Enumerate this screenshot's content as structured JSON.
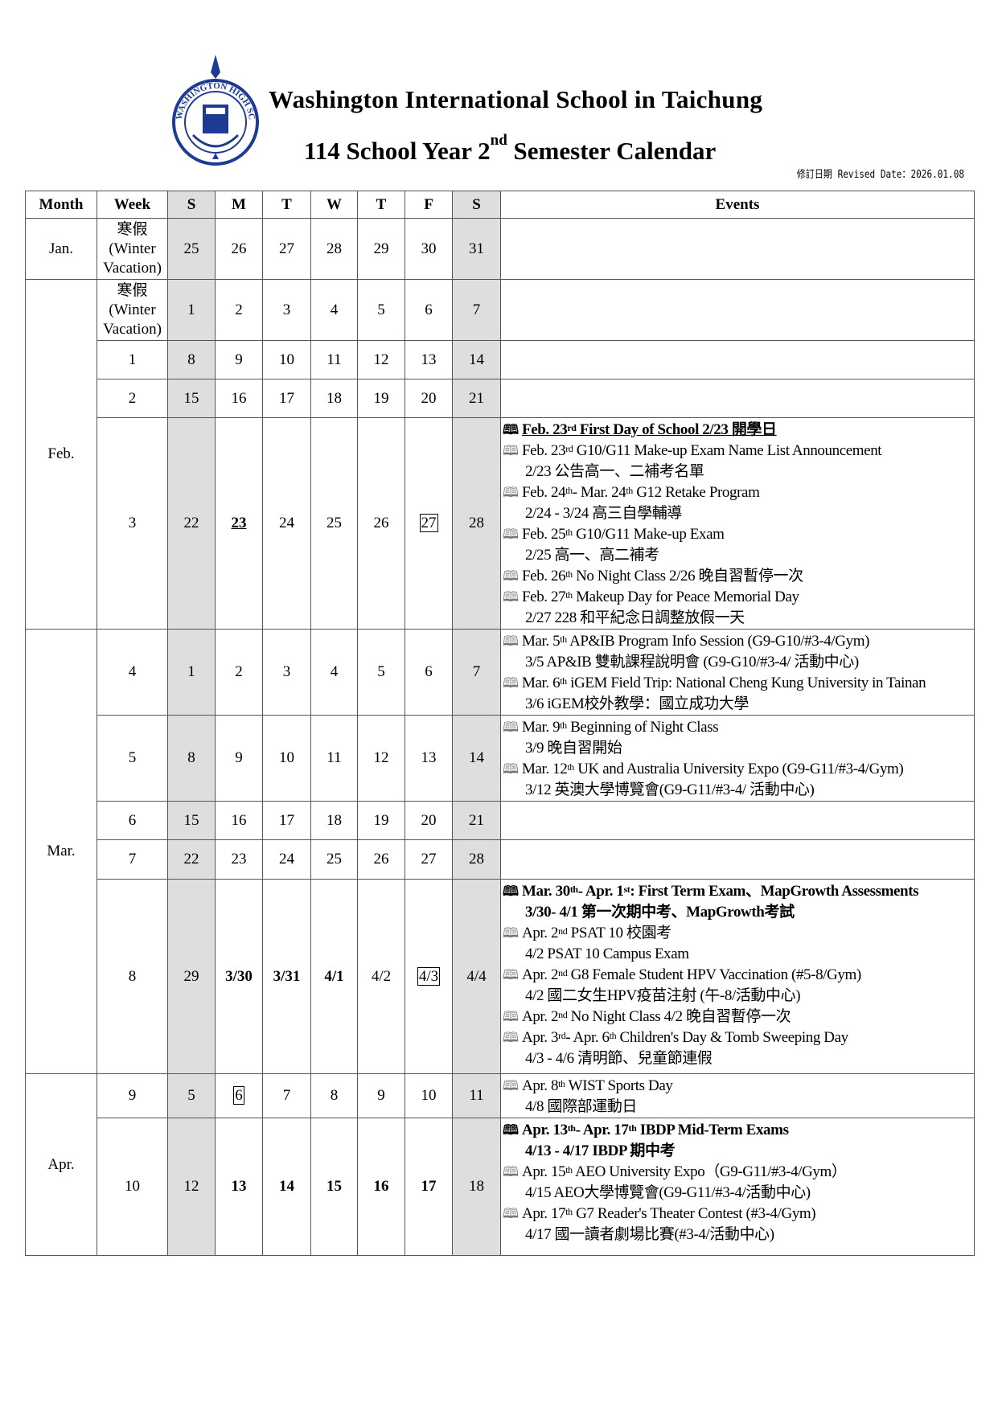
{
  "header": {
    "logo_text": "WASHINGTON HIGH SCHOOL",
    "school_name": "Washington International School in Taichung",
    "calendar_title_pre": "114 School Year 2",
    "calendar_title_sup": "nd",
    "calendar_title_post": " Semester Calendar",
    "revised_date": "修訂日期 Revised Date：2026.01.08"
  },
  "colors": {
    "weekend_shade": "#dedede",
    "logo_blue": "#1f3a93"
  },
  "columns": [
    "Month",
    "Week",
    "S",
    "M",
    "T",
    "W",
    "T",
    "F",
    "S",
    "Events"
  ],
  "months": [
    {
      "label": "Jan.",
      "rows": [
        {
          "week": "寒假 (Winter Vacation)",
          "days": [
            {
              "v": "25"
            },
            {
              "v": "26"
            },
            {
              "v": "27"
            },
            {
              "v": "28"
            },
            {
              "v": "29"
            },
            {
              "v": "30"
            },
            {
              "v": "31"
            }
          ],
          "events": []
        }
      ]
    },
    {
      "label": "Feb.",
      "rows": [
        {
          "week": "寒假 (Winter Vacation)",
          "days": [
            {
              "v": "1"
            },
            {
              "v": "2"
            },
            {
              "v": "3"
            },
            {
              "v": "4"
            },
            {
              "v": "5"
            },
            {
              "v": "6"
            },
            {
              "v": "7"
            }
          ],
          "events": []
        },
        {
          "week": "1",
          "days": [
            {
              "v": "8"
            },
            {
              "v": "9"
            },
            {
              "v": "10"
            },
            {
              "v": "11"
            },
            {
              "v": "12"
            },
            {
              "v": "13"
            },
            {
              "v": "14"
            }
          ],
          "events": []
        },
        {
          "week": "2",
          "days": [
            {
              "v": "15"
            },
            {
              "v": "16"
            },
            {
              "v": "17"
            },
            {
              "v": "18"
            },
            {
              "v": "19"
            },
            {
              "v": "20"
            },
            {
              "v": "21"
            }
          ],
          "events": []
        },
        {
          "week": "3",
          "days": [
            {
              "v": "22"
            },
            {
              "v": "23",
              "style": "underline-bold"
            },
            {
              "v": "24"
            },
            {
              "v": "25"
            },
            {
              "v": "26"
            },
            {
              "v": "27",
              "style": "boxed"
            },
            {
              "v": "28"
            }
          ],
          "events": [
            {
              "style": "bold-underline",
              "line1": [
                "Feb. 23",
                "rd",
                " First Day of School 2/23 開學日"
              ]
            },
            {
              "line1": [
                "Feb. 23",
                "rd",
                " G10/G11 Make-up Exam Name List Announcement"
              ],
              "line2": "2/23 公告高一、二補考名單"
            },
            {
              "line1": [
                "Feb. 24",
                "th",
                "- Mar. 24",
                "th",
                " G12 Retake Program"
              ],
              "line2": "2/24 - 3/24 高三自學輔導"
            },
            {
              "line1": [
                "Feb. 25",
                "th",
                " G10/G11 Make-up Exam"
              ],
              "line2": "2/25 高一、高二補考"
            },
            {
              "line1": [
                "Feb. 26",
                "th",
                " No Night Class 2/26 晚自習暫停一次"
              ]
            },
            {
              "line1": [
                "Feb. 27",
                "th",
                " Makeup Day for Peace Memorial Day"
              ],
              "line2": "2/27  228 和平紀念日調整放假一天"
            }
          ]
        }
      ]
    },
    {
      "label": "Mar.",
      "rows": [
        {
          "week": "4",
          "days": [
            {
              "v": "1"
            },
            {
              "v": "2"
            },
            {
              "v": "3"
            },
            {
              "v": "4"
            },
            {
              "v": "5"
            },
            {
              "v": "6"
            },
            {
              "v": "7"
            }
          ],
          "events": [
            {
              "line1": [
                "Mar. 5",
                "th",
                " AP&IB Program Info Session (G9-G10/#3-4/Gym)"
              ],
              "line2": "3/5 AP&IB 雙軌課程說明會 (G9-G10/#3-4/ 活動中心)"
            },
            {
              "line1": [
                "Mar. 6",
                "th",
                " iGEM Field Trip: National Cheng Kung University in Tainan"
              ],
              "line2": "3/6 iGEM校外教學：國立成功大學"
            }
          ]
        },
        {
          "week": "5",
          "days": [
            {
              "v": "8"
            },
            {
              "v": "9"
            },
            {
              "v": "10"
            },
            {
              "v": "11"
            },
            {
              "v": "12"
            },
            {
              "v": "13"
            },
            {
              "v": "14"
            }
          ],
          "events": [
            {
              "line1": [
                "Mar. 9",
                "th",
                " Beginning of Night Class"
              ],
              "line2": "3/9 晚自習開始"
            },
            {
              "line1": [
                "Mar. 12",
                "th",
                " UK and Australia University Expo (G9-G11/#3-4/Gym)"
              ],
              "line2": "3/12  英澳大學博覽會(G9-G11/#3-4/ 活動中心)"
            }
          ]
        },
        {
          "week": "6",
          "days": [
            {
              "v": "15"
            },
            {
              "v": "16"
            },
            {
              "v": "17"
            },
            {
              "v": "18"
            },
            {
              "v": "19"
            },
            {
              "v": "20"
            },
            {
              "v": "21"
            }
          ],
          "events": []
        },
        {
          "week": "7",
          "days": [
            {
              "v": "22"
            },
            {
              "v": "23"
            },
            {
              "v": "24"
            },
            {
              "v": "25"
            },
            {
              "v": "26"
            },
            {
              "v": "27"
            },
            {
              "v": "28"
            }
          ],
          "events": []
        },
        {
          "week": "8",
          "days": [
            {
              "v": "29"
            },
            {
              "v": "3/30",
              "style": "bold"
            },
            {
              "v": "3/31",
              "style": "bold"
            },
            {
              "v": "4/1",
              "style": "bold"
            },
            {
              "v": "4/2"
            },
            {
              "v": "4/3",
              "style": "boxed"
            },
            {
              "v": "4/4"
            }
          ],
          "events": [
            {
              "style": "bold",
              "line1": [
                "Mar. 30",
                "th",
                "- Apr. 1",
                "st",
                ": First Term Exam、MapGrowth Assessments"
              ],
              "line2": "3/30- 4/1 第一次期中考、MapGrowth考試"
            },
            {
              "line1": [
                "Apr. 2",
                "nd",
                " PSAT 10 校園考"
              ],
              "line2": "4/2 PSAT 10 Campus Exam"
            },
            {
              "line1": [
                "Apr. 2",
                "nd",
                " G8 Female Student HPV Vaccination (#5-8/Gym)"
              ],
              "line2": "4/2 國二女生HPV疫苗注射 (午-8/活動中心)"
            },
            {
              "line1": [
                "Apr. 2",
                "nd",
                " No Night Class 4/2 晚自習暫停一次"
              ]
            },
            {
              "line1": [
                "Apr. 3",
                "rd",
                "- Apr. 6",
                "th",
                " Children's Day & Tomb Sweeping Day"
              ],
              "line2": "4/3 - 4/6 清明節、兒童節連假"
            }
          ]
        }
      ]
    },
    {
      "label": "Apr.",
      "rows": [
        {
          "week": "9",
          "days": [
            {
              "v": "5"
            },
            {
              "v": "6",
              "style": "boxed"
            },
            {
              "v": "7"
            },
            {
              "v": "8"
            },
            {
              "v": "9"
            },
            {
              "v": "10"
            },
            {
              "v": "11"
            }
          ],
          "events": [
            {
              "line1": [
                "Apr. 8",
                "th",
                " WIST Sports Day"
              ],
              "line2": "4/8 國際部運動日"
            }
          ]
        },
        {
          "week": "10",
          "days": [
            {
              "v": "12"
            },
            {
              "v": "13",
              "style": "bold"
            },
            {
              "v": "14",
              "style": "bold"
            },
            {
              "v": "15",
              "style": "bold"
            },
            {
              "v": "16",
              "style": "bold"
            },
            {
              "v": "17",
              "style": "bold"
            },
            {
              "v": "18"
            }
          ],
          "events": [
            {
              "style": "bold",
              "line1": [
                "Apr. 13",
                "th",
                "- Apr. 17",
                "th",
                " IBDP Mid-Term Exams"
              ],
              "line2": "4/13 - 4/17 IBDP 期中考"
            },
            {
              "line1": [
                "Apr. 15",
                "th",
                "  AEO University Expo（G9-G11/#3-4/Gym）"
              ],
              "line2": "4/15  AEO大學博覽會(G9-G11/#3-4/活動中心)"
            },
            {
              "line1": [
                "Apr. 17",
                "th",
                " G7 Reader's Theater Contest (#3-4/Gym)"
              ],
              "line2": "4/17 國一讀者劇場比賽(#3-4/活動中心)"
            }
          ]
        }
      ]
    }
  ]
}
